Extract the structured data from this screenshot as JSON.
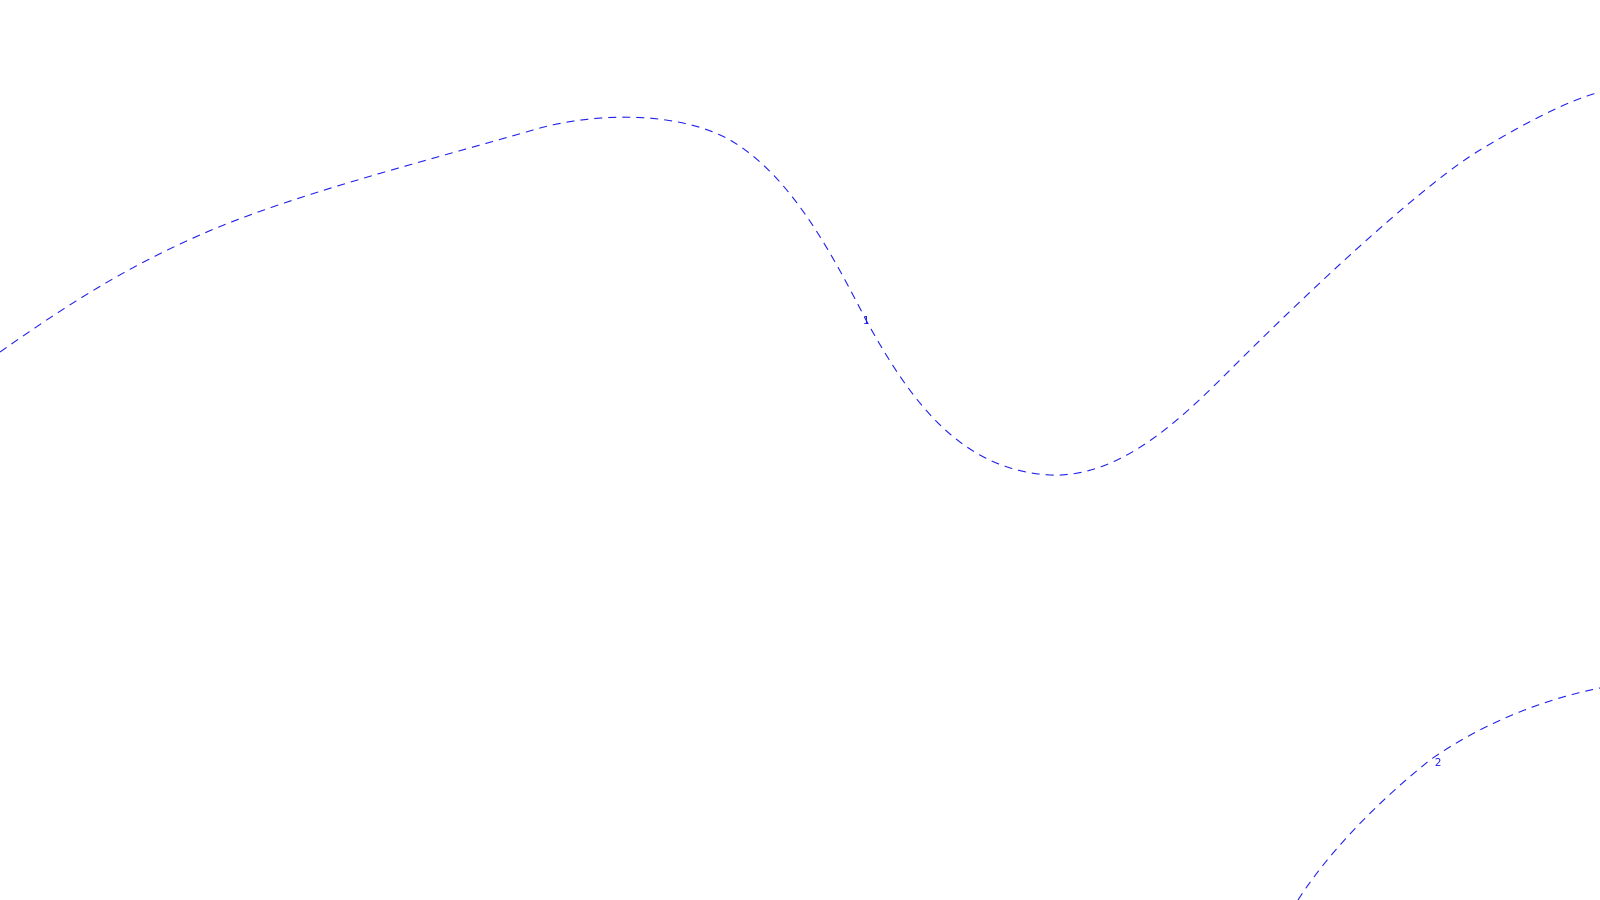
{
  "colors": {
    "background": "#ffffff",
    "contour": "#2020e8"
  },
  "contours": [
    {
      "id": "contour-1",
      "label": "1"
    },
    {
      "id": "contour-2",
      "label": "2"
    }
  ]
}
